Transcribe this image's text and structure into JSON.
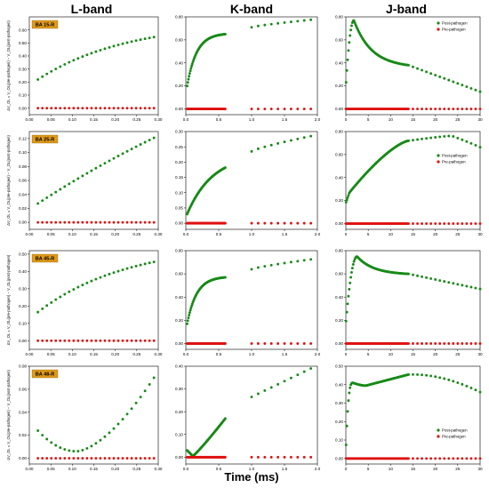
{
  "figure": {
    "columns": [
      "L-band",
      "K-band",
      "J-band"
    ],
    "x_title": "Time (ms)",
    "colors": {
      "post": "#168a16",
      "pre": "#e01010",
      "tag": "#e09a18"
    }
  },
  "chart_data": [
    {
      "type": "scatter",
      "row": "BA 15-R",
      "band": "L-band",
      "tag": "BA 15-R",
      "ylabel": "ΔV_OL = V_OL(pre-pathogen) − V_OL(post-pathogen)",
      "xlim": [
        0,
        0.3
      ],
      "ylim": [
        -0.05,
        0.7
      ],
      "xticks": [
        "0.00",
        "0.05",
        "0.10",
        "0.15",
        "0.20",
        "0.25",
        "0.30"
      ],
      "yticks": [
        "0.00",
        "0.10",
        "0.20",
        "0.30",
        "0.40",
        "0.50",
        "0.60"
      ],
      "series": [
        {
          "role": "post",
          "shape": "L",
          "x0": 0.02,
          "x1": 0.29,
          "n": 27,
          "y0": 0.22,
          "y1": 0.545,
          "k": 1.3
        },
        {
          "role": "pre",
          "shape": "flat",
          "x0": 0.02,
          "x1": 0.29,
          "n": 27,
          "y0": 0,
          "y1": 0
        }
      ]
    },
    {
      "type": "scatter",
      "row": "BA 15-R",
      "band": "K-band",
      "xlim": [
        0,
        2
      ],
      "ylim": [
        -0.05,
        0.8
      ],
      "xticks": [
        "0.0",
        "0.5",
        "1.0",
        "1.5",
        "2.0"
      ],
      "yticks": [
        "0.00",
        "0.20",
        "0.40",
        "0.60",
        "0.80"
      ],
      "series": [
        {
          "role": "post",
          "shape": "K",
          "x0": 0.02,
          "x1": 0.6,
          "n": 60,
          "y0": 0.2,
          "y1": 0.65,
          "k": 4,
          "x2": 1.0,
          "x3": 1.9,
          "n2": 10,
          "y2": 0.71,
          "y3": 0.775
        },
        {
          "role": "pre",
          "shape": "gapflat",
          "x0": 0.02,
          "x1": 0.6,
          "n": 60,
          "x2": 1.0,
          "x3": 1.9,
          "n2": 10,
          "y0": 0
        }
      ]
    },
    {
      "type": "scatter",
      "row": "BA 15-R",
      "band": "J-band",
      "xlim": [
        0,
        30
      ],
      "ylim": [
        -0.05,
        0.8
      ],
      "xticks": [
        "0",
        "5",
        "10",
        "15",
        "20",
        "25",
        "30"
      ],
      "yticks": [
        "0.00",
        "0.20",
        "0.40",
        "0.60",
        "0.80"
      ],
      "legend": {
        "post": "Post-pathogen",
        "pre": "Pre-pathogen",
        "pos": "top-right"
      },
      "series": [
        {
          "role": "post",
          "shape": "J",
          "base": 0.2,
          "px": 1.8,
          "py": 0.77,
          "e14": 0.38,
          "e30": 0.15
        },
        {
          "role": "pre",
          "shape": "Jflat",
          "y0": 0
        }
      ]
    },
    {
      "type": "scatter",
      "row": "BA 25-R",
      "band": "L-band",
      "tag": "BA 25-R",
      "ylabel": "ΔV_OL = V_OL(pre-pathogen) − V_OL(post-pathogen)",
      "xlim": [
        0,
        0.3
      ],
      "ylim": [
        -0.01,
        0.13
      ],
      "xticks": [
        "0.00",
        "0.05",
        "0.10",
        "0.15",
        "0.20",
        "0.25",
        "0.30"
      ],
      "yticks": [
        "0.00",
        "0.02",
        "0.04",
        "0.06",
        "0.08",
        "0.10",
        "0.12"
      ],
      "series": [
        {
          "role": "post",
          "shape": "L",
          "x0": 0.02,
          "x1": 0.29,
          "n": 27,
          "y0": 0.027,
          "y1": 0.121,
          "k": 0.3
        },
        {
          "role": "pre",
          "shape": "flat",
          "x0": 0.02,
          "x1": 0.29,
          "n": 27,
          "y0": 0,
          "y1": 0
        }
      ]
    },
    {
      "type": "scatter",
      "row": "BA 25-R",
      "band": "K-band",
      "xlim": [
        0,
        2
      ],
      "ylim": [
        -0.02,
        0.3
      ],
      "xticks": [
        "0.0",
        "0.5",
        "1.0",
        "1.5",
        "2.0"
      ],
      "yticks": [
        "0.00",
        "0.05",
        "0.10",
        "0.15",
        "0.20",
        "0.25",
        "0.30"
      ],
      "series": [
        {
          "role": "post",
          "shape": "K",
          "x0": 0.02,
          "x1": 0.6,
          "n": 60,
          "y0": 0.03,
          "y1": 0.182,
          "k": 1.5,
          "x2": 1.0,
          "x3": 1.9,
          "n2": 10,
          "y2": 0.235,
          "y3": 0.285
        },
        {
          "role": "pre",
          "shape": "gapflat",
          "x0": 0.02,
          "x1": 0.6,
          "n": 60,
          "x2": 1.0,
          "x3": 1.9,
          "n2": 10,
          "y0": 0
        }
      ]
    },
    {
      "type": "scatter",
      "row": "BA 25-R",
      "band": "J-band",
      "xlim": [
        0,
        30
      ],
      "ylim": [
        -0.05,
        0.8
      ],
      "xticks": [
        "0",
        "5",
        "10",
        "15",
        "20",
        "25",
        "30"
      ],
      "yticks": [
        "0.00",
        "0.20",
        "0.40",
        "0.60",
        "0.80"
      ],
      "legend": {
        "post": "Post-pathogen",
        "pre": "Pre-pathogen",
        "pos": "top-right"
      },
      "series": [
        {
          "role": "post",
          "shape": "J2",
          "base": 0.18,
          "knee": 0.27,
          "e14": 0.72,
          "peak": 0.77,
          "e30": 0.65
        },
        {
          "role": "pre",
          "shape": "Jflat",
          "y0": 0
        }
      ]
    },
    {
      "type": "scatter",
      "row": "BA 45-R",
      "band": "L-band",
      "tag": "BA 45-R",
      "ylabel": "ΔV_OL = V_OL(pre-pathogen) − V_OL(post-pathogen)",
      "xlim": [
        0,
        0.3
      ],
      "ylim": [
        -0.05,
        0.52
      ],
      "xticks": [
        "0.00",
        "0.05",
        "0.10",
        "0.15",
        "0.20",
        "0.25",
        "0.30"
      ],
      "yticks": [
        "0.00",
        "0.10",
        "0.20",
        "0.30",
        "0.40",
        "0.50"
      ],
      "series": [
        {
          "role": "post",
          "shape": "L",
          "x0": 0.02,
          "x1": 0.29,
          "n": 27,
          "y0": 0.165,
          "y1": 0.455,
          "k": 1.3
        },
        {
          "role": "pre",
          "shape": "flat",
          "x0": 0.02,
          "x1": 0.29,
          "n": 27,
          "y0": 0,
          "y1": 0
        }
      ]
    },
    {
      "type": "scatter",
      "row": "BA 45-R",
      "band": "K-band",
      "xlim": [
        0,
        2
      ],
      "ylim": [
        -0.05,
        0.8
      ],
      "xticks": [
        "0.0",
        "0.5",
        "1.0",
        "1.5",
        "2.0"
      ],
      "yticks": [
        "0.00",
        "0.20",
        "0.40",
        "0.60",
        "0.80"
      ],
      "series": [
        {
          "role": "post",
          "shape": "K",
          "x0": 0.02,
          "x1": 0.6,
          "n": 60,
          "y0": 0.17,
          "y1": 0.57,
          "k": 4,
          "x2": 1.0,
          "x3": 1.9,
          "n2": 10,
          "y2": 0.64,
          "y3": 0.725
        },
        {
          "role": "pre",
          "shape": "gapflat",
          "x0": 0.02,
          "x1": 0.6,
          "n": 60,
          "x2": 1.0,
          "x3": 1.9,
          "n2": 10,
          "y0": 0
        }
      ]
    },
    {
      "type": "scatter",
      "row": "BA 45-R",
      "band": "J-band",
      "xlim": [
        0,
        30
      ],
      "ylim": [
        -0.05,
        0.8
      ],
      "xticks": [
        "0",
        "5",
        "10",
        "15",
        "20",
        "25",
        "30"
      ],
      "yticks": [
        "0.00",
        "0.20",
        "0.40",
        "0.60",
        "0.80"
      ],
      "series": [
        {
          "role": "post",
          "shape": "J",
          "base": 0.17,
          "px": 2.5,
          "py": 0.75,
          "e14": 0.6,
          "e30": 0.47
        },
        {
          "role": "pre",
          "shape": "Jflat",
          "y0": 0
        }
      ]
    },
    {
      "type": "scatter",
      "row": "BA 48-R",
      "band": "L-band",
      "tag": "BA 48-R",
      "ylabel": "ΔV_OL = V_OL(pre-pathogen) − V_OL(post-pathogen)",
      "xlim": [
        0,
        0.3
      ],
      "ylim": [
        -0.005,
        0.08
      ],
      "xticks": [
        "0.00",
        "0.05",
        "0.10",
        "0.15",
        "0.20",
        "0.25",
        "0.30"
      ],
      "yticks": [
        "0.00",
        "0.02",
        "0.04",
        "0.06",
        "0.08"
      ],
      "series": [
        {
          "role": "post",
          "shape": "U",
          "x0": 0.02,
          "x1": 0.29,
          "n": 27,
          "y0": 0.024,
          "ymin": 0.006,
          "xmin": 0.11,
          "y1": 0.07
        },
        {
          "role": "pre",
          "shape": "flat",
          "x0": 0.02,
          "x1": 0.29,
          "n": 27,
          "y0": 0,
          "y1": 0
        }
      ]
    },
    {
      "type": "scatter",
      "row": "BA 48-R",
      "band": "K-band",
      "xlim": [
        0,
        2
      ],
      "ylim": [
        -0.03,
        0.4
      ],
      "xticks": [
        "0.0",
        "0.5",
        "1.0",
        "1.5",
        "2.0"
      ],
      "yticks": [
        "0.00",
        "0.10",
        "0.20",
        "0.30",
        "0.40"
      ],
      "series": [
        {
          "role": "post",
          "shape": "K48",
          "x0": 0.02,
          "x1": 0.6,
          "n": 60,
          "y0": 0.03,
          "ydip": 0.005,
          "y1": 0.17,
          "x2": 1.0,
          "x3": 1.9,
          "n2": 10,
          "y2": 0.265,
          "y3": 0.39
        },
        {
          "role": "pre",
          "shape": "gapflat",
          "x0": 0.02,
          "x1": 0.6,
          "n": 60,
          "x2": 1.0,
          "x3": 1.9,
          "n2": 10,
          "y0": 0
        }
      ]
    },
    {
      "type": "scatter",
      "row": "BA 48-R",
      "band": "J-band",
      "xlim": [
        0,
        30
      ],
      "ylim": [
        -0.03,
        0.5
      ],
      "xticks": [
        "0",
        "5",
        "10",
        "15",
        "20",
        "25",
        "30"
      ],
      "yticks": [
        "0.00",
        "0.10",
        "0.20",
        "0.30",
        "0.40",
        "0.50"
      ],
      "legend": {
        "post": "Post-pathogen",
        "pre": "Pre-pathogen",
        "pos": "bottom-right"
      },
      "series": [
        {
          "role": "post",
          "shape": "J48",
          "base": 0.04,
          "p1": 0.41,
          "d1": 0.395,
          "e14": 0.455,
          "e30": 0.36
        },
        {
          "role": "pre",
          "shape": "Jflat",
          "y0": 0
        }
      ]
    }
  ]
}
